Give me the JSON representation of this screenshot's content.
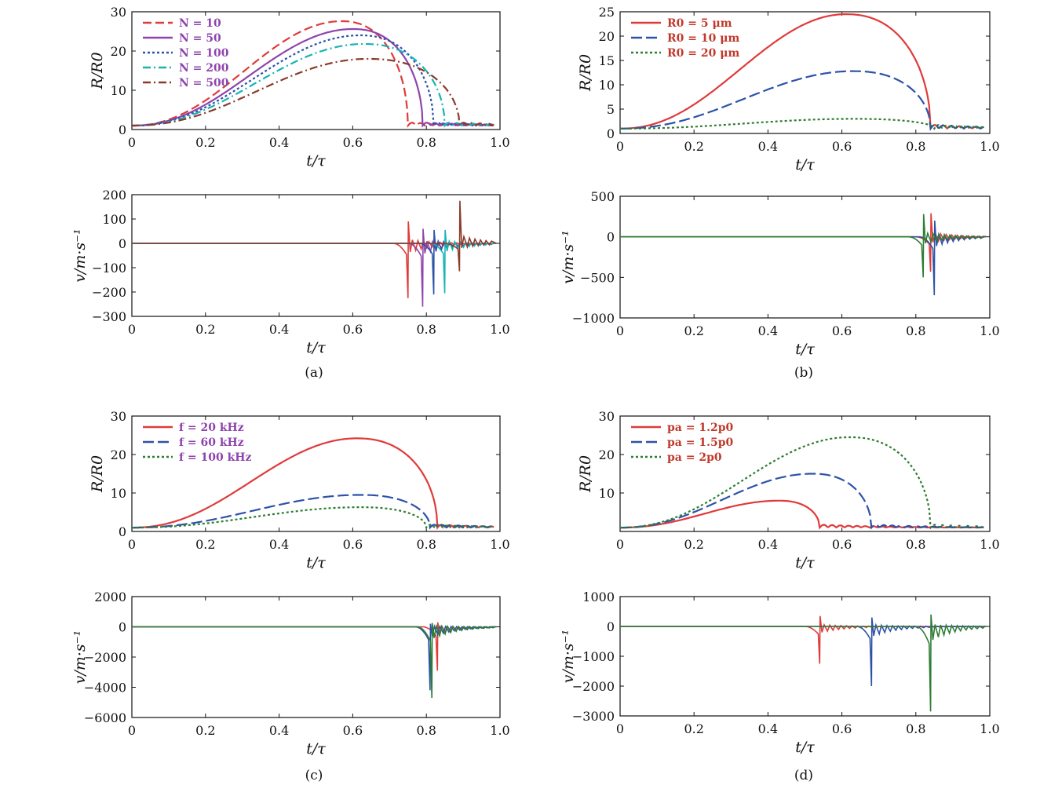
{
  "chart_data": [
    {
      "id": "a1",
      "type": "line",
      "panel": "(a)",
      "xlabel": "t/τ",
      "ylabel": "R/R0",
      "xlim": [
        0,
        1.0
      ],
      "ylim": [
        0,
        30
      ],
      "xticks": [
        "0",
        "0.2",
        "0.4",
        "0.6",
        "0.8",
        "1.0"
      ],
      "yticks": [
        "0",
        "10",
        "20",
        "30"
      ],
      "legend": {
        "position": "top-left",
        "entries": [
          "N = 10",
          "N = 50",
          "N = 100",
          "N = 200",
          "N = 500"
        ]
      },
      "series": [
        {
          "name": "N = 10",
          "color": "#e03a3a",
          "dash": "dash",
          "peak_t": 0.57,
          "peak": 27.6,
          "end_t": 0.75
        },
        {
          "name": "N = 50",
          "color": "#8e44ad",
          "dash": "solid",
          "peak_t": 0.6,
          "peak": 25.6,
          "end_t": 0.79
        },
        {
          "name": "N = 100",
          "color": "#2c52a8",
          "dash": "dot",
          "peak_t": 0.62,
          "peak": 24.0,
          "end_t": 0.82
        },
        {
          "name": "N = 200",
          "color": "#17b3b3",
          "dash": "dashdot",
          "peak_t": 0.63,
          "peak": 21.8,
          "end_t": 0.85
        },
        {
          "name": "N = 500",
          "color": "#8b3a2a",
          "dash": "dashdot",
          "peak_t": 0.64,
          "peak": 18.0,
          "end_t": 0.89
        }
      ]
    },
    {
      "id": "a2",
      "type": "line",
      "xlabel": "t/τ",
      "ylabel": "v/m·s⁻¹",
      "xlim": [
        0,
        1.0
      ],
      "ylim": [
        -300,
        200
      ],
      "xticks": [
        "0",
        "0.2",
        "0.4",
        "0.6",
        "0.8",
        "1.0"
      ],
      "yticks": [
        "−300",
        "−200",
        "−100",
        "0",
        "100",
        "200"
      ],
      "series": [
        {
          "color": "#e03a3a",
          "t": 0.75,
          "min": -225,
          "max": 90
        },
        {
          "color": "#8e44ad",
          "t": 0.79,
          "min": -260,
          "max": 60
        },
        {
          "color": "#2c52a8",
          "t": 0.82,
          "min": -210,
          "max": 55
        },
        {
          "color": "#17b3b3",
          "t": 0.85,
          "min": -205,
          "max": 55
        },
        {
          "color": "#8b3a2a",
          "t": 0.89,
          "min": -115,
          "max": 175
        }
      ]
    },
    {
      "id": "b1",
      "type": "line",
      "panel": "(b)",
      "xlabel": "t/τ",
      "ylabel": "R/R0",
      "xlim": [
        0,
        1.0
      ],
      "ylim": [
        0,
        25
      ],
      "xticks": [
        "0",
        "0.2",
        "0.4",
        "0.6",
        "0.8",
        "1.0"
      ],
      "yticks": [
        "0",
        "5",
        "10",
        "15",
        "20",
        "25"
      ],
      "legend": {
        "position": "top-left",
        "entries": [
          "R0 = 5 μm",
          "R0 = 10 μm",
          "R0 = 20 μm"
        ]
      },
      "series": [
        {
          "name": "R0 = 5 μm",
          "color": "#e03a3a",
          "dash": "solid",
          "peak_t": 0.61,
          "peak": 24.5,
          "end_t": 0.84
        },
        {
          "name": "R0 = 10 μm",
          "color": "#2c52a8",
          "dash": "longdash",
          "peak_t": 0.63,
          "peak": 12.8,
          "end_t": 0.84
        },
        {
          "name": "R0 = 20 μm",
          "color": "#2e7d32",
          "dash": "dot",
          "peak_t": 0.63,
          "peak": 3.0,
          "end_t": 0.85
        }
      ]
    },
    {
      "id": "b2",
      "type": "line",
      "xlabel": "t/τ",
      "ylabel": "v/m·s⁻¹",
      "xlim": [
        0,
        1.0
      ],
      "ylim": [
        -1000,
        500
      ],
      "xticks": [
        "0",
        "0.2",
        "0.4",
        "0.6",
        "0.8",
        "1.0"
      ],
      "yticks": [
        "−1000",
        "−500",
        "0",
        "500"
      ],
      "series": [
        {
          "color": "#e03a3a",
          "t": 0.84,
          "min": -430,
          "max": 290
        },
        {
          "color": "#2c52a8",
          "t": 0.85,
          "min": -720,
          "max": 200
        },
        {
          "color": "#2e7d32",
          "t": 0.82,
          "min": -500,
          "max": 280
        }
      ]
    },
    {
      "id": "c1",
      "type": "line",
      "panel": "(c)",
      "xlabel": "t/τ",
      "ylabel": "R/R0",
      "xlim": [
        0,
        1.0
      ],
      "ylim": [
        0,
        30
      ],
      "xticks": [
        "0",
        "0.2",
        "0.4",
        "0.6",
        "0.8",
        "1.0"
      ],
      "yticks": [
        "0",
        "10",
        "20",
        "30"
      ],
      "legend": {
        "position": "top-left",
        "entries": [
          "f = 20 kHz",
          "f = 60 kHz",
          "f = 100 kHz"
        ]
      },
      "series": [
        {
          "name": "f = 20 kHz",
          "color": "#e03a3a",
          "dash": "solid",
          "peak_t": 0.61,
          "peak": 24.2,
          "end_t": 0.83
        },
        {
          "name": "f = 60 kHz",
          "color": "#2c52a8",
          "dash": "longdash",
          "peak_t": 0.62,
          "peak": 9.5,
          "end_t": 0.81
        },
        {
          "name": "f = 100 kHz",
          "color": "#2e7d32",
          "dash": "dot",
          "peak_t": 0.62,
          "peak": 6.3,
          "end_t": 0.8
        }
      ]
    },
    {
      "id": "c2",
      "type": "line",
      "xlabel": "t/τ",
      "ylabel": "v/m·s⁻¹",
      "xlim": [
        0,
        1.0
      ],
      "ylim": [
        -6000,
        2000
      ],
      "xticks": [
        "0",
        "0.2",
        "0.4",
        "0.6",
        "0.8",
        "1.0"
      ],
      "yticks": [
        "−6000",
        "−4000",
        "−2000",
        "0",
        "2000"
      ],
      "series": [
        {
          "color": "#e03a3a",
          "t": 0.83,
          "min": -2900,
          "max": 300
        },
        {
          "color": "#2c52a8",
          "t": 0.81,
          "min": -4200,
          "max": 200
        },
        {
          "color": "#2e7d32",
          "t": 0.815,
          "min": -4700,
          "max": 250
        }
      ]
    },
    {
      "id": "d1",
      "type": "line",
      "panel": "(d)",
      "xlabel": "t/τ",
      "ylabel": "R/R0",
      "xlim": [
        0,
        1.0
      ],
      "ylim": [
        0,
        30
      ],
      "xticks": [
        "0",
        "0.2",
        "0.4",
        "0.6",
        "0.8",
        "1.0"
      ],
      "yticks": [
        "10",
        "20",
        "30"
      ],
      "legend": {
        "position": "top-left",
        "entries": [
          "pa = 1.2p0",
          "pa = 1.5p0",
          "pa = 2p0"
        ]
      },
      "series": [
        {
          "name": "pa = 1.2p0",
          "color": "#e03a3a",
          "dash": "solid",
          "peak_t": 0.43,
          "peak": 8.0,
          "end_t": 0.54
        },
        {
          "name": "pa = 1.5p0",
          "color": "#2c52a8",
          "dash": "longdash",
          "peak_t": 0.52,
          "peak": 15.0,
          "end_t": 0.68
        },
        {
          "name": "pa = 2p0",
          "color": "#2e7d32",
          "dash": "dot",
          "peak_t": 0.62,
          "peak": 24.5,
          "end_t": 0.84
        }
      ]
    },
    {
      "id": "d2",
      "type": "line",
      "xlabel": "t/τ",
      "ylabel": "v/m·s⁻¹",
      "xlim": [
        0,
        1.0
      ],
      "ylim": [
        -3000,
        1000
      ],
      "xticks": [
        "0",
        "0.2",
        "0.4",
        "0.6",
        "0.8",
        "1.0"
      ],
      "yticks": [
        "−3000",
        "−2000",
        "−1000",
        "0",
        "1000"
      ],
      "series": [
        {
          "color": "#e03a3a",
          "t": 0.54,
          "min": -1250,
          "max": 350
        },
        {
          "color": "#2c52a8",
          "t": 0.68,
          "min": -2000,
          "max": 300
        },
        {
          "color": "#2e7d32",
          "t": 0.84,
          "min": -2850,
          "max": 400
        }
      ]
    }
  ],
  "panel_labels": [
    "(a)",
    "(b)",
    "(c)",
    "(d)"
  ]
}
